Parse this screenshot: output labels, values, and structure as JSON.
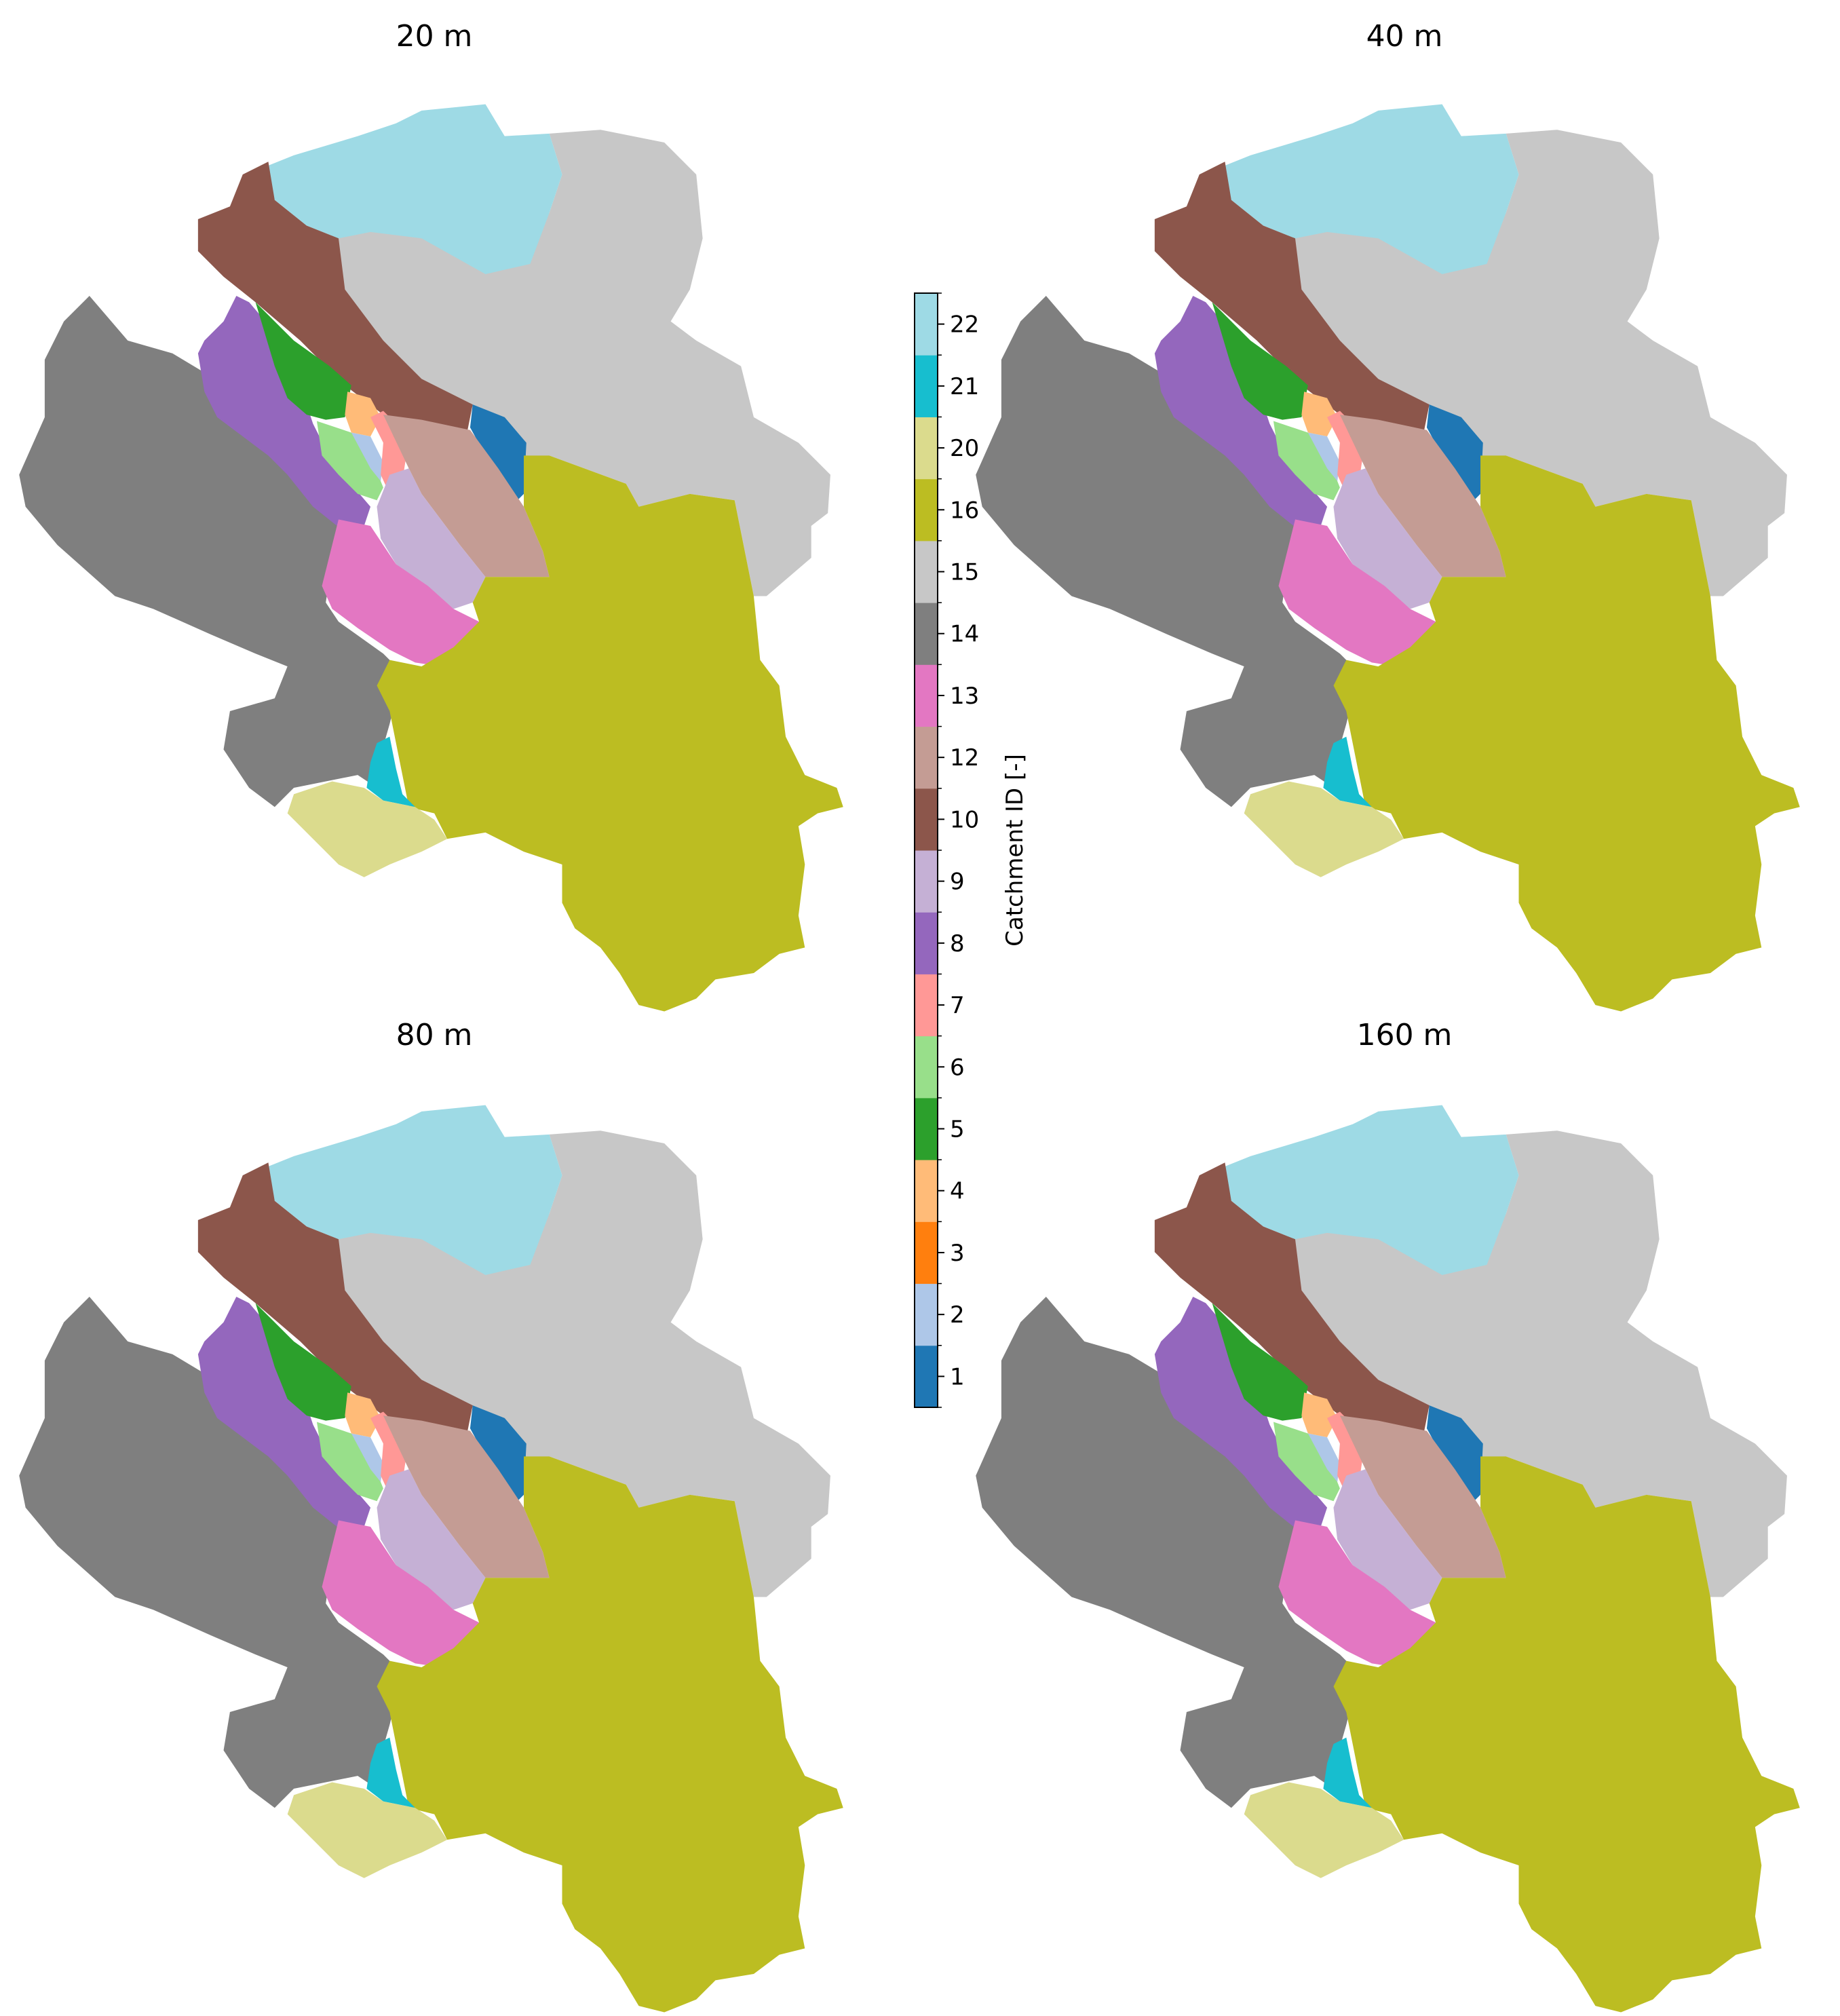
{
  "figure": {
    "panels": [
      {
        "title": "20 m"
      },
      {
        "title": "40 m"
      },
      {
        "title": "80 m"
      },
      {
        "title": "160 m"
      }
    ],
    "colorbar": {
      "label": "Catchment ID [-]",
      "entries": [
        {
          "id": "1",
          "color": "#1f77b4"
        },
        {
          "id": "2",
          "color": "#aec7e8"
        },
        {
          "id": "3",
          "color": "#ff7f0e"
        },
        {
          "id": "4",
          "color": "#ffbb78"
        },
        {
          "id": "5",
          "color": "#2ca02c"
        },
        {
          "id": "6",
          "color": "#98df8a"
        },
        {
          "id": "7",
          "color": "#ff9896"
        },
        {
          "id": "8",
          "color": "#9467bd"
        },
        {
          "id": "9",
          "color": "#c5b0d5"
        },
        {
          "id": "10",
          "color": "#8c564b"
        },
        {
          "id": "12",
          "color": "#c49c94"
        },
        {
          "id": "13",
          "color": "#e377c2"
        },
        {
          "id": "14",
          "color": "#7f7f7f"
        },
        {
          "id": "15",
          "color": "#c7c7c7"
        },
        {
          "id": "16",
          "color": "#bcbd22"
        },
        {
          "id": "20",
          "color": "#dbdb8d"
        },
        {
          "id": "21",
          "color": "#17becf"
        },
        {
          "id": "22",
          "color": "#9edae5"
        }
      ]
    }
  }
}
